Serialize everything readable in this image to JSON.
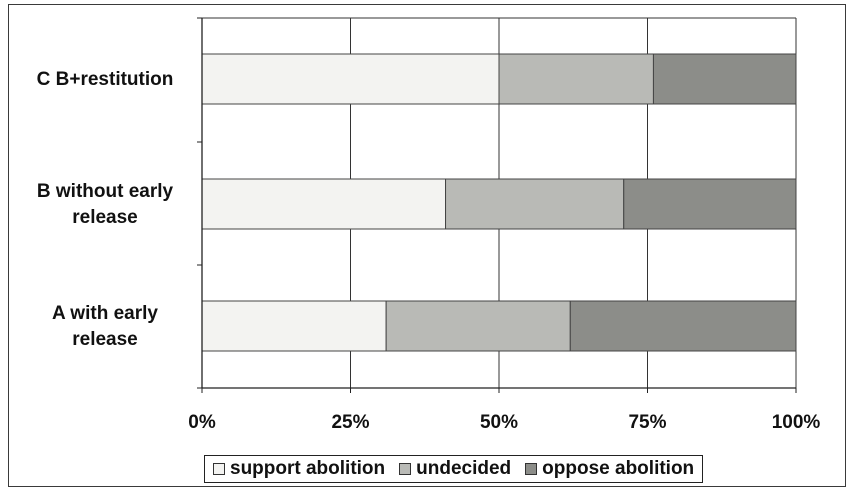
{
  "chart_data": {
    "type": "bar",
    "orientation": "horizontal",
    "stacked": true,
    "percent_stacked": true,
    "categories": [
      "C B+restitution",
      "B without early release",
      "A with early release"
    ],
    "series": [
      {
        "name": "support abolition",
        "color": "#f3f3f1",
        "values": [
          50,
          41,
          31
        ]
      },
      {
        "name": "undecided",
        "color": "#b9bab6",
        "values": [
          26,
          30,
          31
        ]
      },
      {
        "name": "oppose abolition",
        "color": "#8c8d89",
        "values": [
          24,
          29,
          38
        ]
      }
    ],
    "xlim": [
      0,
      100
    ],
    "x_ticks": [
      0,
      25,
      50,
      75,
      100
    ],
    "x_tick_labels": [
      "0%",
      "25%",
      "50%",
      "75%",
      "100%"
    ],
    "grid": "vertical",
    "legend_position": "bottom"
  }
}
